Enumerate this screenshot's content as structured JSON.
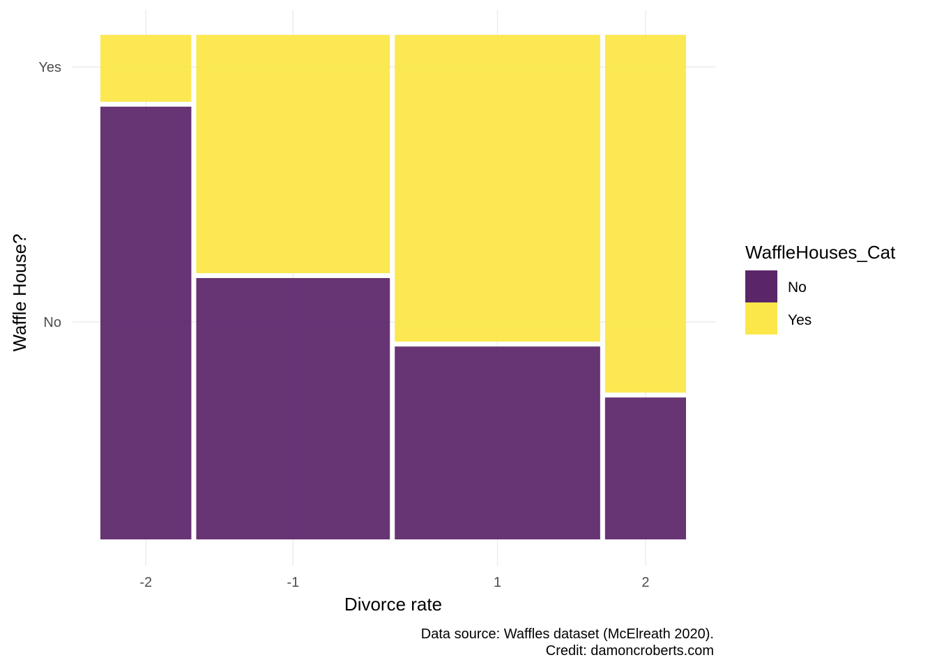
{
  "chart_data": {
    "type": "mosaic",
    "xlabel": "Divorce rate",
    "ylabel": "Waffle House?",
    "categories": [
      "-2",
      "-1",
      "1",
      "2"
    ],
    "column_widths": [
      0.155,
      0.33,
      0.35,
      0.138
    ],
    "fill_levels": [
      "No",
      "Yes"
    ],
    "proportions": {
      "No": [
        0.866,
        0.523,
        0.386,
        0.284
      ],
      "Yes": [
        0.134,
        0.477,
        0.614,
        0.716
      ]
    },
    "y_tick_labels": [
      "No",
      "Yes"
    ],
    "legend": {
      "title": "WaffleHouses_Cat",
      "position": "right",
      "entries": [
        {
          "label": "No",
          "color": "#5b2569"
        },
        {
          "label": "Yes",
          "color": "#fbe74a"
        }
      ]
    },
    "grid": true,
    "caption": [
      "Data source: Waffles dataset (McElreath 2020).",
      "Credit: damoncroberts.com"
    ]
  },
  "colors": {
    "No": "#5b2569",
    "Yes": "#fbe74a"
  }
}
